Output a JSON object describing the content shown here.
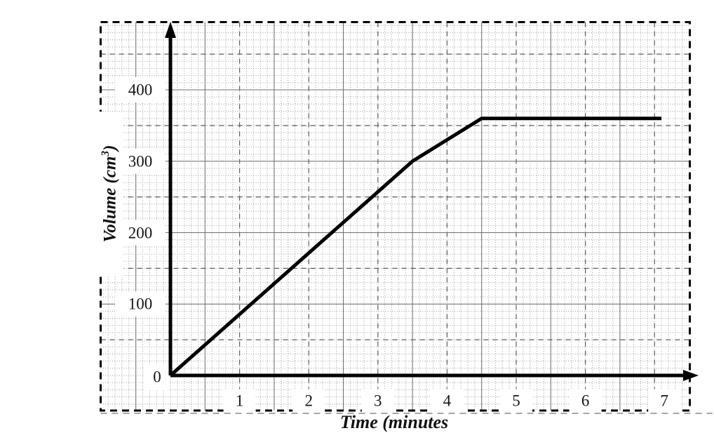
{
  "chart_data": {
    "type": "line",
    "title": "",
    "xlabel": "Time (minutes",
    "ylabel": {
      "prefix": "Volume (cm",
      "sup": "3",
      "suffix": ")"
    },
    "x_ticks": [
      {
        "label": "1",
        "value": 1
      },
      {
        "label": "2",
        "value": 2
      },
      {
        "label": "3",
        "value": 3
      },
      {
        "label": "4",
        "value": 4
      },
      {
        "label": "5",
        "value": 5
      },
      {
        "label": "6",
        "value": 6
      },
      {
        "label": "7",
        "value": 7,
        "label_offset_x": 14
      }
    ],
    "y_ticks": [
      {
        "label": "400",
        "value": 400
      },
      {
        "label": "300",
        "value": 300
      },
      {
        "label": "200",
        "value": 200
      },
      {
        "label": "100",
        "value": 100
      }
    ],
    "origin_label": "0",
    "xlim": [
      0,
      7.5
    ],
    "ylim": [
      0,
      495
    ],
    "grid": {
      "style": "graph-paper",
      "minor_per_unit": 10,
      "mid_dashed_x_at": "integers",
      "mid_solid_x_at": "half-units",
      "mid_solid_y_at": "hundreds",
      "mid_dashed_y_at": "fifties",
      "border": "dashed"
    },
    "series": [
      {
        "name": "Volume",
        "points": [
          [
            0,
            0
          ],
          [
            3.5,
            300
          ],
          [
            4.5,
            360
          ],
          [
            7.1,
            360
          ]
        ]
      }
    ],
    "colors": {
      "line": "#000000",
      "grid_minor": "#9b9b9b",
      "grid_mid_solid": "#6f6f6f",
      "grid_mid_dashed": "#5e5e5e",
      "border": "#000000",
      "gray_rule": "#8a8a8a",
      "text": "#151515"
    }
  }
}
